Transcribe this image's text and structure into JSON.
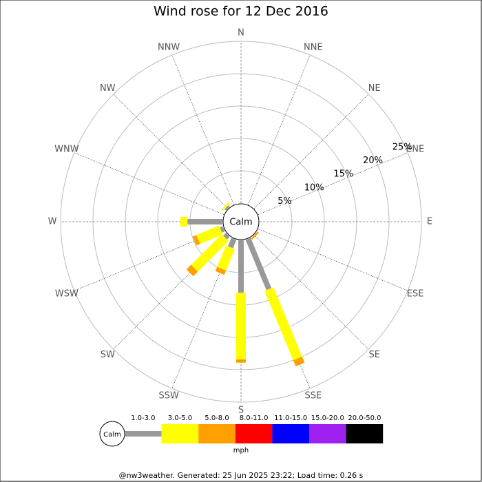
{
  "chart_data": {
    "type": "windrose",
    "title": "Wind rose for 12 Dec 2016",
    "categories": [
      "N",
      "NNE",
      "NE",
      "ENE",
      "E",
      "ESE",
      "SE",
      "SSE",
      "S",
      "SSW",
      "SW",
      "WSW",
      "W",
      "WNW",
      "NW",
      "NNW"
    ],
    "calm_label": "Calm",
    "units": "mph",
    "ylim": [
      0,
      25
    ],
    "yticks": [
      {
        "value": 5,
        "label": "5%"
      },
      {
        "value": 10,
        "label": "10%"
      },
      {
        "value": 15,
        "label": "15%"
      },
      {
        "value": 20,
        "label": "20%"
      },
      {
        "value": 25,
        "label": "25%"
      }
    ],
    "grid": true,
    "series": [
      {
        "name": "1.0-3.0",
        "color": "#999999",
        "values": [
          0,
          0,
          0,
          0,
          0,
          0,
          0,
          8.4,
          8.1,
          1.4,
          0.6,
          0.5,
          5.4,
          0,
          0.3,
          0
        ]
      },
      {
        "name": "3.0-5.0",
        "color": "#ffff00",
        "values": [
          0,
          0,
          0,
          0,
          0,
          0,
          0,
          11.6,
          10.3,
          3.6,
          6.7,
          3.8,
          1.1,
          0,
          0.3,
          0
        ]
      },
      {
        "name": "5.0-8.0",
        "color": "#ff9f00",
        "values": [
          0,
          0,
          0,
          0,
          0,
          0,
          0.3,
          1.0,
          0.5,
          0.7,
          1.0,
          0.6,
          0,
          0,
          0,
          0
        ]
      },
      {
        "name": "8.0-11.0",
        "color": "#ff0000",
        "values": [
          0,
          0,
          0,
          0,
          0,
          0,
          0,
          0,
          0,
          0,
          0,
          0,
          0,
          0,
          0,
          0
        ]
      },
      {
        "name": "11.0-15.0",
        "color": "#0000ff",
        "values": [
          0,
          0,
          0,
          0,
          0,
          0,
          0,
          0,
          0,
          0,
          0,
          0,
          0,
          0,
          0,
          0
        ]
      },
      {
        "name": "15.0-20.0",
        "color": "#a020f0",
        "values": [
          0,
          0,
          0,
          0,
          0,
          0,
          0,
          0,
          0,
          0,
          0,
          0,
          0,
          0,
          0,
          0
        ]
      },
      {
        "name": "20.0-50.0",
        "color": "#000000",
        "values": [
          0,
          0,
          0,
          0,
          0,
          0,
          0,
          0,
          0,
          0,
          0,
          0,
          0,
          0,
          0,
          0
        ]
      }
    ],
    "footer": "@nw3weather. Generated: 25 Jun 2025 23:22; Load time: 0.26 s"
  }
}
